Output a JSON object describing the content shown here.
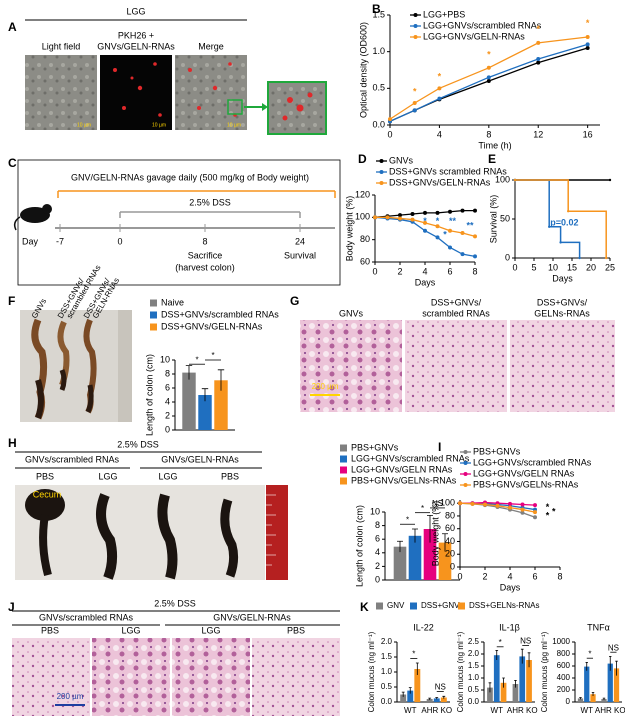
{
  "figure": {
    "panel_labels": [
      "A",
      "B",
      "C",
      "D",
      "E",
      "F",
      "G",
      "H",
      "I",
      "J",
      "K"
    ],
    "A": {
      "title": "LGG",
      "columns": [
        [
          "Light field"
        ],
        [
          "PKH26 +",
          "GNVs/GELN-RNAs"
        ],
        [
          "Merge"
        ]
      ],
      "scale_bars": [
        "10 µm",
        "10 µm",
        "10 µm"
      ]
    },
    "C": {
      "top_text": "GNV/GELN-RNAs gavage daily (500 mg/kg of Body weight)",
      "dss": "2.5% DSS",
      "day": "Day",
      "days": [
        -7,
        0,
        8,
        24
      ],
      "events": [
        [
          "Sacrifice",
          "(harvest colon)"
        ],
        [
          "Survival"
        ]
      ]
    },
    "F": {
      "labels": [
        [
          "GNVs"
        ],
        [
          "DSS+GNVs/",
          "scrambled RNAs"
        ],
        [
          "DSS+GNVs/",
          "GELN-RNAs"
        ]
      ]
    },
    "G": {
      "labels": [
        [
          "GNVs"
        ],
        [
          "DSS+GNVs/",
          "scrambled RNAs"
        ],
        [
          "DSS+GNVs/",
          "GELNs-RNAs"
        ]
      ],
      "scale_bar": "200 µm"
    },
    "H": {
      "title": "2.5% DSS",
      "groups": [
        "GNVs/scrambled RNAs",
        "GNVs/GELN-RNAs"
      ],
      "columns": [
        "PBS",
        "LGG",
        "LGG",
        "PBS"
      ],
      "cecum": "Cecum"
    },
    "J": {
      "title": "2.5% DSS",
      "groups": [
        "GNVs/scrambled RNAs",
        "GNVs/GELN-RNAs"
      ],
      "columns": [
        "PBS",
        "LGG",
        "LGG",
        "PBS"
      ],
      "scale_bar": "200 µm"
    }
  },
  "chart_data": [
    {
      "type": "line",
      "x_label": "Time (h)",
      "y_label": "Optical density (OD600)",
      "x": [
        0,
        2,
        4,
        8,
        12,
        16
      ],
      "xlim": [
        0,
        17
      ],
      "xticks": [
        0,
        4,
        8,
        12,
        16
      ],
      "ylim": [
        0,
        1.5
      ],
      "yticks": [
        {
          "value": 0,
          "label": "0.0"
        },
        0.5,
        {
          "value": 1,
          "label": "1.0"
        },
        1.5
      ],
      "series": [
        {
          "name": "LGG+PBS",
          "color": "#000000",
          "values": [
            0.05,
            0.2,
            0.35,
            0.6,
            0.85,
            1.05
          ]
        },
        {
          "name": "LGG+GNVs/scrambled RNAs",
          "color": "#1f6fc0",
          "values": [
            0.05,
            0.2,
            0.36,
            0.65,
            0.9,
            1.1
          ]
        },
        {
          "name": "LGG+GNVs/GELN-RNAs",
          "color": "#f7941d",
          "values": [
            0.08,
            0.3,
            0.5,
            0.78,
            1.12,
            1.2
          ]
        }
      ],
      "annotations": [
        {
          "text": "*",
          "x": 2,
          "y": 0.45,
          "color": "#f7941d"
        },
        {
          "text": "*",
          "x": 4,
          "y": 0.65,
          "color": "#f7941d"
        },
        {
          "text": "*",
          "x": 8,
          "y": 0.95,
          "color": "#f7941d"
        },
        {
          "text": "*",
          "x": 12,
          "y": 1.3,
          "color": "#f7941d"
        },
        {
          "text": "*",
          "x": 16,
          "y": 1.38,
          "color": "#f7941d"
        }
      ]
    },
    {
      "type": "line",
      "x_label": "Days",
      "y_label": "Body weight (%)",
      "x": [
        0,
        1,
        2,
        3,
        4,
        5,
        6,
        7,
        8
      ],
      "xlim": [
        0,
        8
      ],
      "xticks": [
        0,
        2,
        4,
        6,
        8
      ],
      "ylim": [
        60,
        120
      ],
      "yticks": [
        60,
        80,
        100,
        120
      ],
      "series": [
        {
          "name": "GNVs",
          "color": "#000000",
          "values": [
            100,
            101,
            102,
            103,
            104,
            104,
            105,
            106,
            106
          ]
        },
        {
          "name": "DSS+GNVs scrambled RNAs",
          "color": "#1f6fc0",
          "values": [
            100,
            99,
            98,
            96,
            88,
            82,
            73,
            67,
            65
          ]
        },
        {
          "name": "DSS+GNVs/GELN-RNAs",
          "color": "#f7941d",
          "values": [
            100,
            100,
            99,
            98,
            95,
            92,
            88,
            86,
            83
          ]
        }
      ],
      "annotations": [
        {
          "text": "*",
          "x": 4,
          "y": 96,
          "color": "#1f6fc0"
        },
        {
          "text": "*",
          "x": 5,
          "y": 96,
          "color": "#1f6fc0"
        },
        {
          "text": "**",
          "x": 6.2,
          "y": 96,
          "color": "#1f6fc0"
        },
        {
          "text": "*",
          "x": 5.6,
          "y": 84,
          "color": "#1f6fc0"
        },
        {
          "text": "**",
          "x": 7.6,
          "y": 92,
          "color": "#1f6fc0"
        }
      ]
    },
    {
      "type": "step",
      "x_label": "Days",
      "y_label": "Survival (%)",
      "xlim": [
        0,
        25
      ],
      "xticks": [
        0,
        5,
        10,
        15,
        20,
        25
      ],
      "ylim": [
        0,
        100
      ],
      "yticks": [
        0,
        50,
        100
      ],
      "series": [
        {
          "color": "#000000",
          "x": [
            0,
            25
          ],
          "values": [
            100,
            100
          ]
        },
        {
          "color": "#1f6fc0",
          "x": [
            0,
            9,
            12,
            17
          ],
          "values": [
            100,
            40,
            20,
            0
          ]
        },
        {
          "color": "#f7941d",
          "x": [
            0,
            14,
            24
          ],
          "values": [
            100,
            60,
            0
          ]
        }
      ],
      "annotations": [
        {
          "text": "p=0.02",
          "x": 13,
          "y": 45,
          "color": "#1f6fc0"
        }
      ]
    },
    {
      "type": "bar",
      "y_label": "Length of colon (cm)",
      "categories": [
        null
      ],
      "ylim": [
        0,
        10
      ],
      "yticks": [
        0,
        2,
        4,
        6,
        8,
        10
      ],
      "series": [
        {
          "name": "Naive",
          "color": "#808080",
          "values": [
            8.2
          ],
          "errors": [
            1.0
          ]
        },
        {
          "name": "DSS+GNVs/scrambled RNAs",
          "color": "#1f6fc0",
          "values": [
            5.0
          ],
          "errors": [
            0.9
          ]
        },
        {
          "name": "DSS+GNVs/GELN-RNAs",
          "color": "#f7941d",
          "values": [
            7.1
          ],
          "errors": [
            1.5
          ]
        }
      ],
      "annotations": [
        {
          "text": "*",
          "from": [
            0,
            0
          ],
          "to": [
            0,
            1
          ],
          "y": 9.4
        },
        {
          "text": "*",
          "from": [
            0,
            1
          ],
          "to": [
            0,
            2
          ],
          "y": 10
        }
      ]
    },
    {
      "type": "bar",
      "y_label": "Length of colon (cm)",
      "categories": [
        null
      ],
      "ylim": [
        0,
        10
      ],
      "yticks": [
        0,
        2,
        4,
        6,
        8,
        10
      ],
      "series": [
        {
          "name": "PBS+GNVs",
          "color": "#808080",
          "values": [
            4.9
          ],
          "errors": [
            0.8
          ]
        },
        {
          "name": "LGG+GNVs/scrambled RNAs",
          "color": "#1f6fc0",
          "values": [
            6.5
          ],
          "errors": [
            1.0
          ]
        },
        {
          "name": "LGG+GNVs/GELN RNAs",
          "color": "#e6007e",
          "values": [
            7.5
          ],
          "errors": [
            2.0
          ]
        },
        {
          "name": "PBS+GNVs/GELNs-RNAs",
          "color": "#f7941d",
          "values": [
            5.5
          ],
          "errors": [
            1.3
          ]
        }
      ],
      "annotations": [
        {
          "text": "*",
          "from": [
            0,
            0
          ],
          "to": [
            0,
            1
          ],
          "y": 8.2
        },
        {
          "text": "*",
          "from": [
            0,
            1
          ],
          "to": [
            0,
            2
          ],
          "y": 9.9
        },
        {
          "text": "NS",
          "from": [
            0,
            2
          ],
          "to": [
            0,
            3
          ],
          "y": 10.6
        }
      ]
    },
    {
      "type": "line",
      "x_label": "Days",
      "y_label": "Body weight (%)",
      "x": [
        0,
        1,
        2,
        3,
        4,
        5,
        6
      ],
      "xlim": [
        0,
        8
      ],
      "xticks": [
        0,
        2,
        4,
        6,
        8
      ],
      "ylim": [
        0,
        105
      ],
      "yticks": [
        0,
        20,
        40,
        60,
        80,
        100
      ],
      "series": [
        {
          "name": "PBS+GNVs",
          "color": "#808080",
          "values": [
            100,
            99,
            97,
            94,
            90,
            85,
            78
          ]
        },
        {
          "name": "LGG+GNVs/scrambled RNAs",
          "color": "#1f6fc0",
          "values": [
            100,
            100,
            99,
            98,
            96,
            93,
            90
          ]
        },
        {
          "name": "LGG+GNVs/GELN RNAs",
          "color": "#e6007e",
          "values": [
            100,
            100,
            101,
            100,
            99,
            98,
            97
          ]
        },
        {
          "name": "PBS+GNVs/GELNs-RNAs",
          "color": "#f7941d",
          "values": [
            100,
            99,
            98,
            96,
            93,
            90,
            86
          ]
        }
      ],
      "annotations": [
        {
          "text": "*",
          "x": 7,
          "y": 93,
          "color": "#000000"
        },
        {
          "text": "*",
          "x": 7.5,
          "y": 86,
          "color": "#000000"
        },
        {
          "text": "*",
          "x": 7,
          "y": 80,
          "color": "#000000"
        }
      ]
    },
    {
      "type": "bar",
      "title": "IL-22",
      "y_label": "Colon mucus (ng ml⁻¹)",
      "categories": [
        "WT",
        "AHR KO"
      ],
      "ylim": [
        0,
        2
      ],
      "yticks": [
        {
          "value": 0,
          "label": "0.0"
        },
        0.5,
        {
          "value": 1,
          "label": "1.0"
        },
        1.5,
        {
          "value": 2,
          "label": "2.0"
        }
      ],
      "series": [
        {
          "name": "GNV",
          "color": "#808080",
          "values": [
            0.25,
            0.1
          ],
          "errors": [
            0.08,
            0.03
          ]
        },
        {
          "name": "DSS+GNV",
          "color": "#1f6fc0",
          "values": [
            0.38,
            0.12
          ],
          "errors": [
            0.1,
            0.03
          ]
        },
        {
          "name": "DSS+GELNs-RNAs",
          "color": "#f7941d",
          "values": [
            1.1,
            0.15
          ],
          "errors": [
            0.2,
            0.04
          ]
        }
      ],
      "annotations": [
        {
          "text": "*",
          "from": [
            0,
            1
          ],
          "to": [
            0,
            2
          ],
          "y": 1.45
        },
        {
          "text": "NS",
          "from": [
            1,
            1
          ],
          "to": [
            1,
            2
          ],
          "y": 0.35
        }
      ]
    },
    {
      "type": "bar",
      "title": "IL-1β",
      "y_label": "Colon mucus (ng ml⁻¹)",
      "categories": [
        "WT",
        "AHR KO"
      ],
      "ylim": [
        0,
        2.5
      ],
      "yticks": [
        {
          "value": 0,
          "label": "0.0"
        },
        0.5,
        {
          "value": 1,
          "label": "1.0"
        },
        1.5,
        {
          "value": 2,
          "label": "2.0"
        },
        2.5
      ],
      "series": [
        {
          "color": "#808080",
          "values": [
            0.6,
            0.75
          ],
          "errors": [
            0.2,
            0.15
          ]
        },
        {
          "color": "#1f6fc0",
          "values": [
            1.95,
            1.9
          ],
          "errors": [
            0.2,
            0.3
          ]
        },
        {
          "color": "#f7941d",
          "values": [
            0.8,
            1.75
          ],
          "errors": [
            0.2,
            0.3
          ]
        }
      ],
      "annotations": [
        {
          "text": "*",
          "from": [
            0,
            1
          ],
          "to": [
            0,
            2
          ],
          "y": 2.3
        },
        {
          "text": "NS",
          "from": [
            1,
            1
          ],
          "to": [
            1,
            2
          ],
          "y": 2.35
        }
      ]
    },
    {
      "type": "bar",
      "title": "TNFα",
      "y_label": "Colon mucus (pg ml⁻¹)",
      "categories": [
        "WT",
        "AHR KO"
      ],
      "ylim": [
        0,
        1000
      ],
      "yticks": [
        0,
        200,
        400,
        600,
        800,
        1000
      ],
      "series": [
        {
          "color": "#808080",
          "values": [
            60,
            50
          ],
          "errors": [
            15,
            15
          ]
        },
        {
          "color": "#1f6fc0",
          "values": [
            590,
            640
          ],
          "errors": [
            70,
            120
          ]
        },
        {
          "color": "#f7941d",
          "values": [
            130,
            560
          ],
          "errors": [
            30,
            120
          ]
        }
      ],
      "annotations": [
        {
          "text": "*",
          "from": [
            0,
            1
          ],
          "to": [
            0,
            2
          ],
          "y": 730
        },
        {
          "text": "NS",
          "from": [
            1,
            1
          ],
          "to": [
            1,
            2
          ],
          "y": 830
        }
      ]
    }
  ]
}
